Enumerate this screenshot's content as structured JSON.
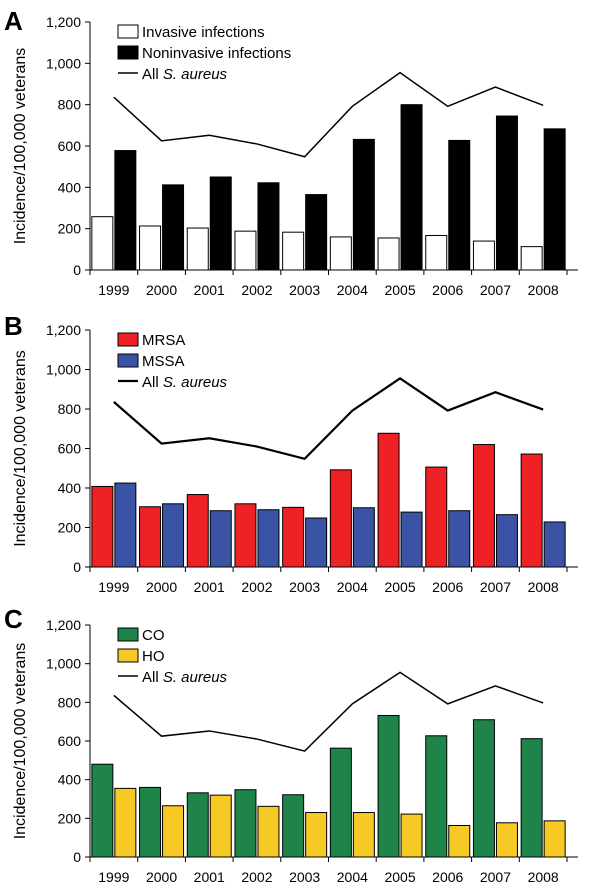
{
  "chart_data": [
    {
      "panel_label": "A",
      "type": "bar",
      "ylabel": "Incidence/100,000 veterans",
      "ylim": [
        0,
        1200
      ],
      "yticks": [
        "0",
        "200",
        "400",
        "600",
        "800",
        "1,000",
        "1,200"
      ],
      "categories": [
        "1999",
        "2000",
        "2001",
        "2002",
        "2003",
        "2004",
        "2005",
        "2006",
        "2007",
        "2008"
      ],
      "series": [
        {
          "name": "Invasive infections",
          "type": "bar",
          "color": "#ffffff",
          "values": [
            258,
            213,
            203,
            188,
            183,
            160,
            155,
            167,
            140,
            113
          ]
        },
        {
          "name": "Noninvasive infections",
          "type": "bar",
          "color": "#000000",
          "values": [
            578,
            412,
            450,
            422,
            365,
            632,
            800,
            627,
            745,
            683
          ]
        },
        {
          "name_prefix": "All ",
          "name_italic": "S. aureus",
          "type": "line",
          "color": "#000000",
          "values": [
            836,
            625,
            652,
            610,
            548,
            792,
            955,
            792,
            885,
            797
          ]
        }
      ],
      "grid": false,
      "legend_position": "top-left"
    },
    {
      "panel_label": "B",
      "type": "bar",
      "ylabel": "Incidence/100,000 veterans",
      "ylim": [
        0,
        1200
      ],
      "yticks": [
        "0",
        "200",
        "400",
        "600",
        "800",
        "1,000",
        "1,200"
      ],
      "categories": [
        "1999",
        "2000",
        "2001",
        "2002",
        "2003",
        "2004",
        "2005",
        "2006",
        "2007",
        "2008"
      ],
      "series": [
        {
          "name": "MRSA",
          "type": "bar",
          "color": "#ee2224",
          "values": [
            408,
            305,
            367,
            320,
            302,
            492,
            677,
            506,
            620,
            572
          ]
        },
        {
          "name": "MSSA",
          "type": "bar",
          "color": "#3a53a4",
          "values": [
            425,
            320,
            285,
            290,
            248,
            300,
            278,
            285,
            265,
            228
          ]
        },
        {
          "name_prefix": "All ",
          "name_italic": "S. aureus",
          "type": "line",
          "color": "#000000",
          "values": [
            836,
            625,
            652,
            610,
            548,
            792,
            955,
            792,
            885,
            797
          ]
        }
      ],
      "grid": false,
      "legend_position": "top-left"
    },
    {
      "panel_label": "C",
      "type": "bar",
      "ylabel": "Incidence/100,000 veterans",
      "ylim": [
        0,
        1200
      ],
      "yticks": [
        "0",
        "200",
        "400",
        "600",
        "800",
        "1,000",
        "1,200"
      ],
      "categories": [
        "1999",
        "2000",
        "2001",
        "2002",
        "2003",
        "2004",
        "2005",
        "2006",
        "2007",
        "2008"
      ],
      "series": [
        {
          "name": "CO",
          "type": "bar",
          "color": "#1e8449",
          "values": [
            480,
            360,
            332,
            348,
            322,
            563,
            732,
            627,
            710,
            612
          ]
        },
        {
          "name": "HO",
          "type": "bar",
          "color": "#f6c925",
          "values": [
            355,
            265,
            320,
            262,
            230,
            230,
            222,
            163,
            177,
            187
          ]
        },
        {
          "name_prefix": "All ",
          "name_italic": "S. aureus",
          "type": "line",
          "color": "#000000",
          "values": [
            836,
            625,
            652,
            610,
            548,
            792,
            955,
            792,
            885,
            797
          ]
        }
      ],
      "grid": false,
      "legend_position": "top-left"
    }
  ]
}
